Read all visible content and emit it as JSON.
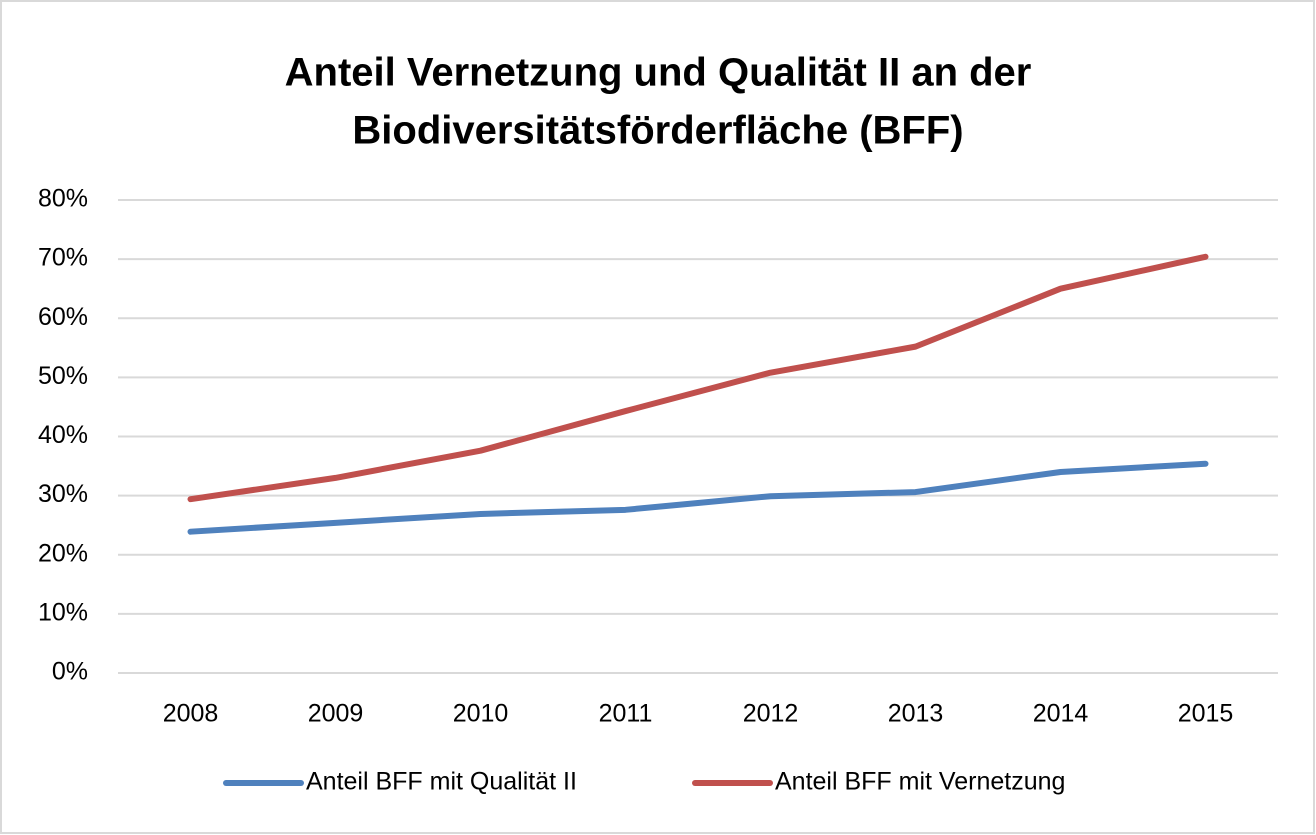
{
  "chart_data": {
    "type": "line",
    "title": [
      "Anteil Vernetzung und Qualität II an der",
      "Biodiversitätsförderfläche (BFF)"
    ],
    "categories": [
      "2008",
      "2009",
      "2010",
      "2011",
      "2012",
      "2013",
      "2014",
      "2015"
    ],
    "series": [
      {
        "name": "Anteil BFF mit Qualität II",
        "color": "#4f81bd",
        "values": [
          23.9,
          25.4,
          26.9,
          27.6,
          29.9,
          30.6,
          34.0,
          35.4
        ]
      },
      {
        "name": "Anteil BFF mit Vernetzung",
        "color": "#c0504d",
        "values": [
          29.4,
          33.0,
          37.6,
          44.3,
          50.8,
          55.2,
          65.0,
          70.4
        ]
      }
    ],
    "ylim": [
      0,
      80
    ],
    "yticks": [
      {
        "value": 0,
        "label": "0%"
      },
      {
        "value": 10,
        "label": "10%"
      },
      {
        "value": 20,
        "label": "20%"
      },
      {
        "value": 30,
        "label": "30%"
      },
      {
        "value": 40,
        "label": "40%"
      },
      {
        "value": 50,
        "label": "50%"
      },
      {
        "value": 60,
        "label": "60%"
      },
      {
        "value": 70,
        "label": "70%"
      },
      {
        "value": 80,
        "label": "80%"
      }
    ],
    "grid": true,
    "legend": "bottom"
  }
}
